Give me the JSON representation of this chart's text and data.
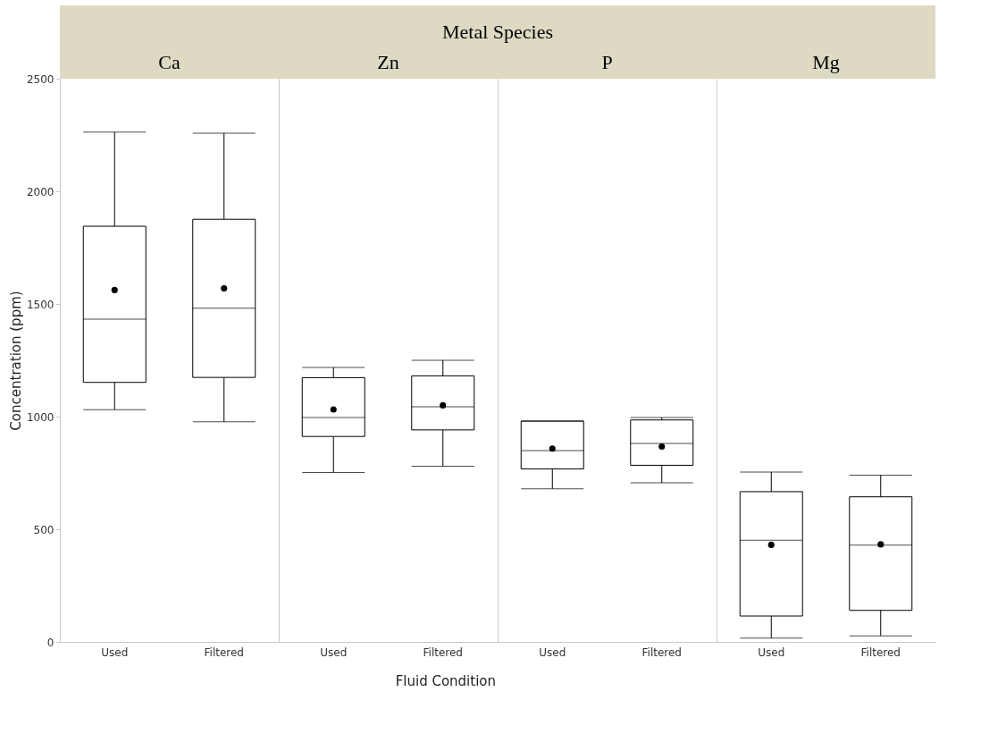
{
  "chart_data": [
    {
      "type": "box",
      "title": "Ca",
      "annotations": [
        "Metal Species"
      ],
      "ylabel": "Concentration (ppm)",
      "categories": [
        "Used",
        "Filtered"
      ],
      "ylim": [
        0,
        2500
      ],
      "yticks": [
        0,
        500,
        1000,
        1500,
        2000,
        2500
      ],
      "boxes": [
        {
          "low": 1031,
          "q1": 1152,
          "median": 1433,
          "q3": 1845,
          "high": 2263,
          "mean": 1562
        },
        {
          "low": 977,
          "q1": 1174,
          "median": 1481,
          "q3": 1876,
          "high": 2258,
          "mean": 1569
        }
      ]
    },
    {
      "type": "box",
      "title": "Zn",
      "xlabel": "Fluid Condition",
      "categories": [
        "Used",
        "Filtered"
      ],
      "ylim": [
        0,
        2500
      ],
      "yticks": [
        0,
        500,
        1000,
        1500,
        2000,
        2500
      ],
      "tick_labels": "x",
      "boxes": [
        {
          "low": 752,
          "q1": 912,
          "median": 996,
          "q3": 1173,
          "high": 1218,
          "mean": 1032
        },
        {
          "low": 780,
          "q1": 941,
          "median": 1044,
          "q3": 1181,
          "high": 1250,
          "mean": 1050
        }
      ]
    },
    {
      "type": "box",
      "title": "P",
      "categories": [
        "Used",
        "Filtered"
      ],
      "ylim": [
        0,
        2500
      ],
      "yticks": [
        0,
        500,
        1000,
        1500,
        2000,
        2500
      ],
      "tick_labels": "x",
      "boxes": [
        {
          "low": 680,
          "q1": 768,
          "median": 849,
          "q3": 980,
          "high": 980,
          "mean": 858
        },
        {
          "low": 706,
          "q1": 784,
          "median": 881,
          "q3": 985,
          "high": 996,
          "mean": 867
        }
      ]
    },
    {
      "type": "box",
      "title": "Mg",
      "categories": [
        "Used",
        "Filtered"
      ],
      "ylim": [
        0,
        2500
      ],
      "yticks": [
        0,
        500,
        1000,
        1500,
        2000,
        2500
      ],
      "tick_labels": "x",
      "boxes": [
        {
          "low": 17,
          "q1": 115,
          "median": 451,
          "q3": 667,
          "high": 754,
          "mean": 431
        },
        {
          "low": 27,
          "q1": 140,
          "median": 430,
          "q3": 644,
          "high": 740,
          "mean": 433
        }
      ]
    }
  ]
}
